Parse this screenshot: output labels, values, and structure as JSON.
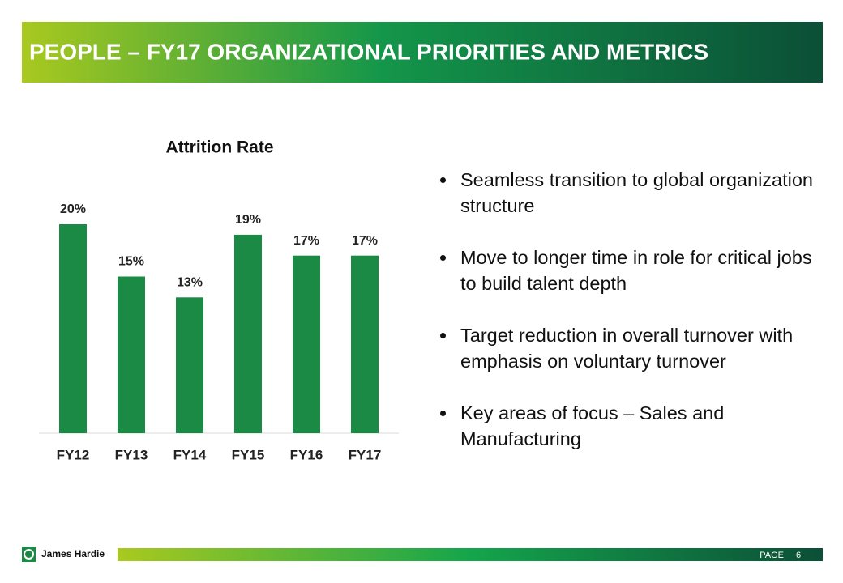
{
  "header": {
    "title": "PEOPLE – FY17 ORGANIZATIONAL PRIORITIES AND METRICS"
  },
  "chart_data": {
    "type": "bar",
    "title": "Attrition Rate",
    "categories": [
      "FY12",
      "FY13",
      "FY14",
      "FY15",
      "FY16",
      "FY17"
    ],
    "values": [
      20,
      15,
      13,
      19,
      17,
      17
    ],
    "value_labels": [
      "20%",
      "15%",
      "13%",
      "19%",
      "17%",
      "17%"
    ],
    "color": "#1b8a45",
    "ylim": [
      0,
      20
    ]
  },
  "bullets": [
    "Seamless transition to global organization structure",
    "Move to longer time in role for critical jobs to build talent depth",
    "Target reduction in overall turnover with emphasis on voluntary turnover",
    "Key areas of focus – Sales and Manufacturing"
  ],
  "footer": {
    "company": "James Hardie",
    "page_label": "PAGE",
    "page_number": 6
  }
}
